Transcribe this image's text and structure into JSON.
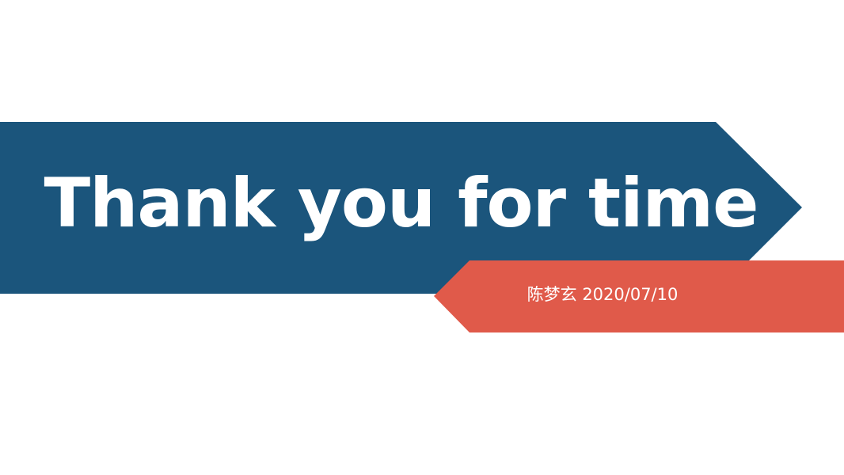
{
  "slide": {
    "title": "Thank you for time",
    "subtitle": "陈梦玄 2020/07/10"
  },
  "colors": {
    "background": "#ffffff",
    "primary_banner": "#1b557c",
    "accent_banner": "#e05a4a",
    "text": "#ffffff"
  }
}
